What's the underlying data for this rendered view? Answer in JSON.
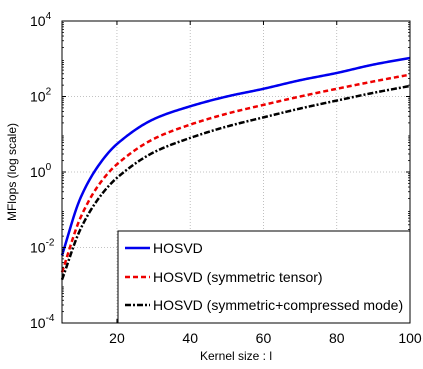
{
  "chart_data": {
    "type": "line",
    "xlabel": "Kernel size : l",
    "ylabel": "MFlops (log scale)",
    "xlim": [
      5,
      100
    ],
    "ylim": [
      0.0001,
      10000
    ],
    "yscale": "log",
    "grid": true,
    "legend_position": "bottom-right",
    "x_ticks": [
      {
        "value": 20,
        "label": "20"
      },
      {
        "value": 40,
        "label": "40"
      },
      {
        "value": 60,
        "label": "60"
      },
      {
        "value": 80,
        "label": "80"
      },
      {
        "value": 100,
        "label": "100"
      }
    ],
    "y_ticks": [
      {
        "value": 0.0001,
        "base": "10",
        "exp": "-4"
      },
      {
        "value": 0.01,
        "base": "10",
        "exp": "-2"
      },
      {
        "value": 1,
        "base": "10",
        "exp": "0"
      },
      {
        "value": 100,
        "base": "10",
        "exp": "2"
      },
      {
        "value": 10000,
        "base": "10",
        "exp": "4"
      }
    ],
    "x": [
      5,
      10,
      15,
      20,
      30,
      40,
      50,
      60,
      70,
      80,
      90,
      100
    ],
    "series": [
      {
        "name": "HOSVD",
        "color": "#0000ee",
        "dash": "solid",
        "values": [
          0.0062,
          0.2,
          1.5,
          5.5,
          25,
          55,
          100,
          160,
          270,
          420,
          700,
          1050
        ]
      },
      {
        "name": "HOSVD (symmetric tensor)",
        "color": "#ee0000",
        "dash": "dashed",
        "values": [
          0.0022,
          0.06,
          0.45,
          1.6,
          7.5,
          18,
          35,
          60,
          100,
          160,
          250,
          380
        ]
      },
      {
        "name": "HOSVD (symmetric+compressed mode)",
        "color": "#000000",
        "dash": "dashdot",
        "values": [
          0.0014,
          0.03,
          0.2,
          0.7,
          3.3,
          8,
          16,
          28,
          48,
          78,
          125,
          190
        ]
      }
    ]
  }
}
